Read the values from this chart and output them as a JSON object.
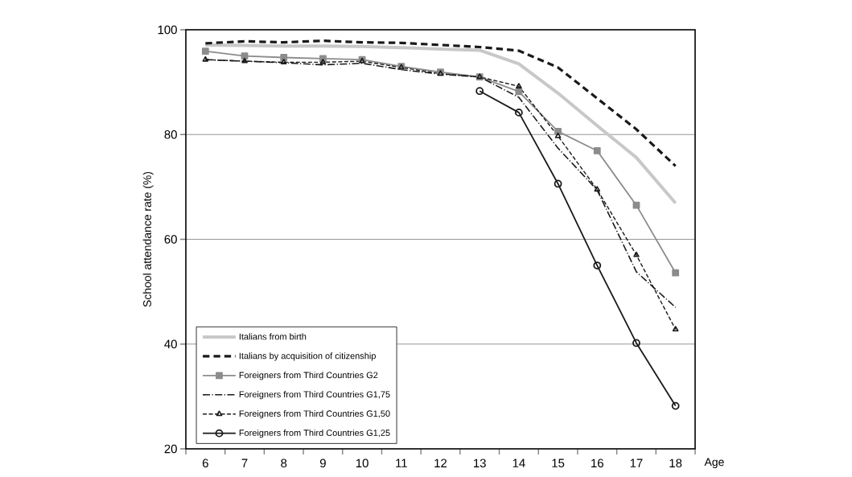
{
  "chart_data": {
    "type": "line",
    "xlabel": "Age",
    "ylabel": "School attendance rate (%)",
    "categories": [
      "6",
      "7",
      "8",
      "9",
      "10",
      "11",
      "12",
      "13",
      "14",
      "15",
      "16",
      "17",
      "18"
    ],
    "ylim": [
      20,
      100
    ],
    "yticks": [
      20,
      40,
      60,
      80,
      100
    ],
    "grid": "y",
    "legend": "bottom left",
    "series": [
      {
        "name": "Italians from birth",
        "color": "#c8c8c8",
        "line_style": "solid",
        "marker": "none",
        "values": [
          97.1,
          97.0,
          96.9,
          96.9,
          96.8,
          96.6,
          96.3,
          96.1,
          93.5,
          87.9,
          81.7,
          75.6,
          66.9
        ]
      },
      {
        "name": "Italians by acquisition of citizenship",
        "color": "#1a1a1a",
        "line_style": "dashed",
        "marker": "none",
        "values": [
          97.4,
          97.8,
          97.6,
          97.9,
          97.6,
          97.5,
          97.1,
          96.7,
          96.0,
          92.8,
          86.9,
          81.0,
          74.0
        ]
      },
      {
        "name": "Foreigners from Third Countries G2",
        "color": "#8c8c8c",
        "line_style": "solid",
        "marker": "square",
        "values": [
          95.9,
          95.0,
          94.7,
          94.5,
          94.3,
          93.0,
          91.9,
          91.0,
          88.2,
          80.6,
          76.9,
          66.5,
          53.6
        ]
      },
      {
        "name": "Foreigners from Third Countries G1,75",
        "color": "#1a1a1a",
        "line_style": "dashdot",
        "marker": "none",
        "values": [
          94.3,
          94.0,
          93.7,
          93.3,
          93.6,
          92.4,
          91.5,
          91.0,
          87.1,
          77.4,
          69.4,
          53.8,
          47.0
        ]
      },
      {
        "name": "Foreigners from Third Countries G1,50",
        "color": "#1a1a1a",
        "line_style": "dashed",
        "marker": "triangle",
        "values": [
          94.3,
          94.0,
          93.8,
          93.8,
          94.0,
          92.8,
          91.6,
          91.0,
          89.2,
          79.7,
          69.5,
          57.0,
          42.8
        ]
      },
      {
        "name": "Foreigners from Third Countries G1,25",
        "color": "#1a1a1a",
        "line_style": "solid",
        "marker": "circle",
        "values": [
          null,
          null,
          null,
          null,
          null,
          null,
          null,
          88.3,
          84.2,
          70.6,
          55.0,
          40.2,
          28.2
        ]
      }
    ]
  }
}
